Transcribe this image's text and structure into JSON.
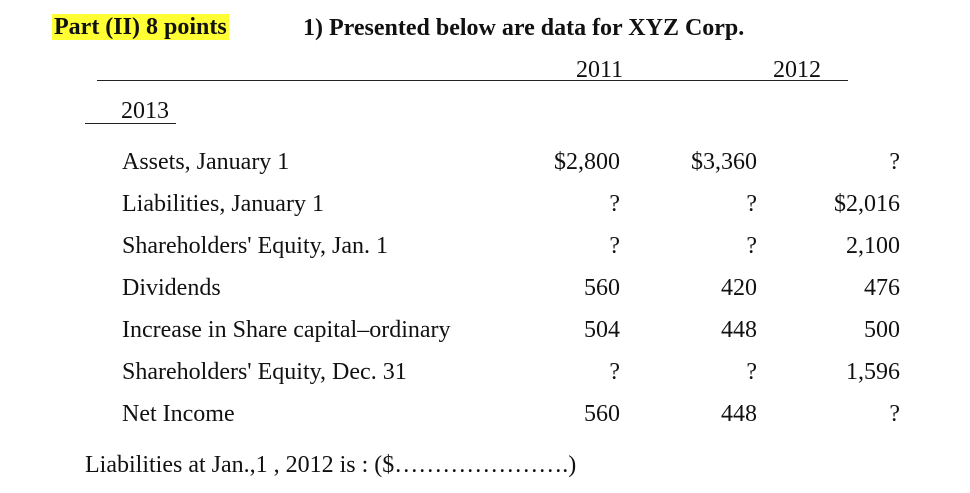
{
  "header": {
    "part": "Part (II) 8 points",
    "question": "1) Presented below are data for XYZ  Corp."
  },
  "years": [
    "2011",
    "2012",
    "2013"
  ],
  "rows": [
    {
      "label": "Assets, January 1",
      "values": [
        "$2,800",
        "$3,360",
        "?"
      ]
    },
    {
      "label": "Liabilities, January 1",
      "values": [
        "?",
        "?",
        "$2,016"
      ]
    },
    {
      "label": "Shareholders' Equity, Jan. 1",
      "values": [
        "?",
        "?",
        "2,100"
      ]
    },
    {
      "label": "Dividends",
      "values": [
        "560",
        "420",
        "476"
      ]
    },
    {
      "label": "Increase in Share capital–ordinary",
      "values": [
        "504",
        "448",
        "500"
      ]
    },
    {
      "label": "Shareholders' Equity, Dec. 31",
      "values": [
        "?",
        "?",
        "1,596"
      ]
    },
    {
      "label": "Net Income",
      "values": [
        "560",
        "448",
        "?"
      ]
    }
  ],
  "footer": "Liabilities  at Jan.,1 , 2012 is :  ($………………….)"
}
